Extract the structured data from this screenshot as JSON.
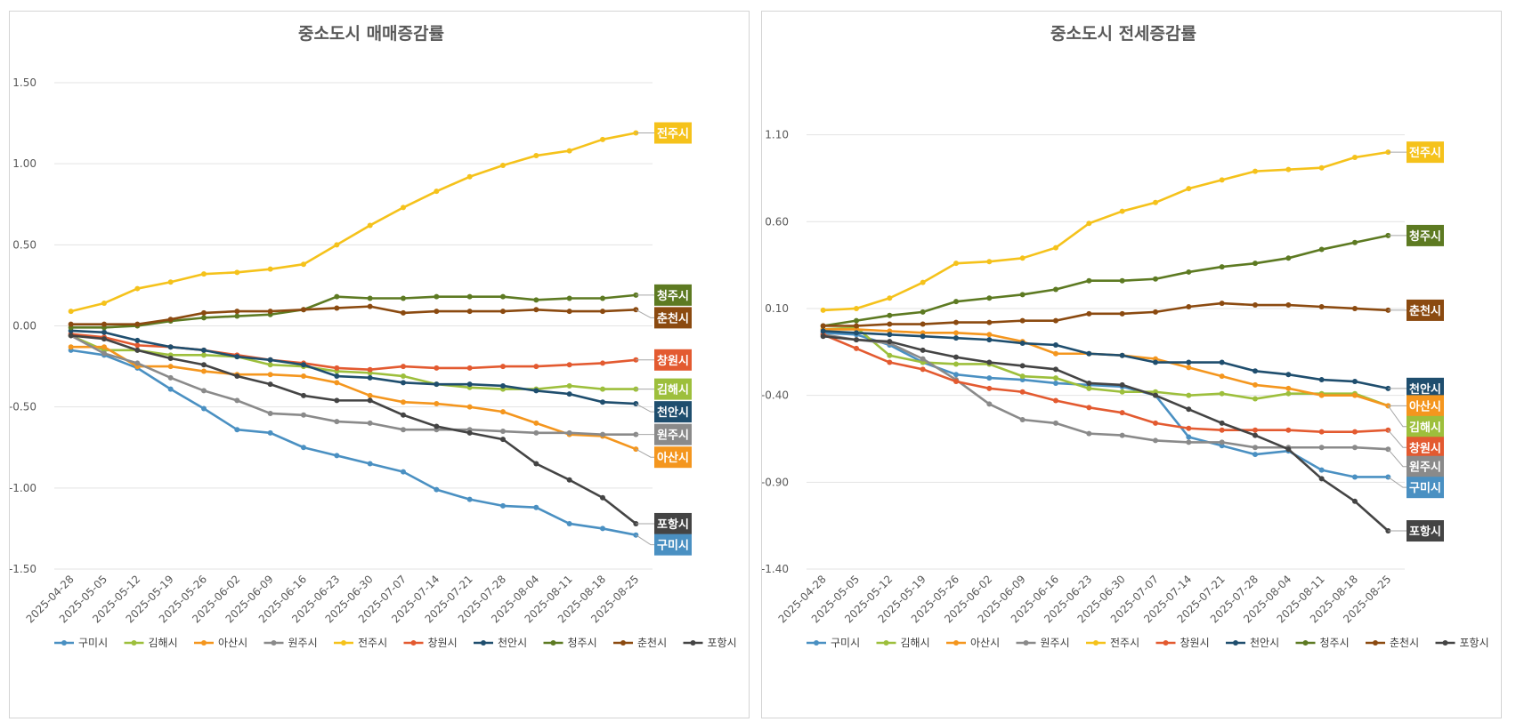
{
  "chart_data": [
    {
      "type": "line",
      "title": "중소도시 매매증감률",
      "x": [
        "2025-04-28",
        "2025-05-05",
        "2025-05-12",
        "2025-05-19",
        "2025-05-26",
        "2025-06-02",
        "2025-06-09",
        "2025-06-16",
        "2025-06-23",
        "2025-06-30",
        "2025-07-07",
        "2025-07-14",
        "2025-07-21",
        "2025-07-28",
        "2025-08-04",
        "2025-08-11",
        "2025-08-18",
        "2025-08-25"
      ],
      "ylim": [
        -1.5,
        1.5
      ],
      "yticks": [
        "1.50",
        "1.00",
        "0.50",
        "0.00",
        "-0.50",
        "-1.00",
        "-1.50"
      ],
      "grid": true,
      "legend": "bottom",
      "series": [
        {
          "name": "구미시",
          "color": "#4a90c2",
          "values": [
            -0.15,
            -0.18,
            -0.26,
            -0.39,
            -0.51,
            -0.64,
            -0.66,
            -0.75,
            -0.8,
            -0.85,
            -0.9,
            -1.01,
            -1.07,
            -1.11,
            -1.12,
            -1.22,
            -1.25,
            -1.29
          ]
        },
        {
          "name": "김해시",
          "color": "#9dbf3c",
          "values": [
            -0.06,
            -0.15,
            -0.15,
            -0.18,
            -0.18,
            -0.19,
            -0.24,
            -0.25,
            -0.28,
            -0.29,
            -0.31,
            -0.36,
            -0.38,
            -0.39,
            -0.39,
            -0.37,
            -0.39,
            -0.39
          ]
        },
        {
          "name": "아산시",
          "color": "#f4961e",
          "values": [
            -0.13,
            -0.13,
            -0.25,
            -0.25,
            -0.28,
            -0.3,
            -0.3,
            -0.31,
            -0.35,
            -0.43,
            -0.47,
            -0.48,
            -0.5,
            -0.53,
            -0.6,
            -0.67,
            -0.68,
            -0.76
          ]
        },
        {
          "name": "원주시",
          "color": "#8a8a8a",
          "values": [
            -0.06,
            -0.17,
            -0.23,
            -0.32,
            -0.4,
            -0.46,
            -0.54,
            -0.55,
            -0.59,
            -0.6,
            -0.64,
            -0.64,
            -0.64,
            -0.65,
            -0.66,
            -0.66,
            -0.67,
            -0.67
          ]
        },
        {
          "name": "전주시",
          "color": "#f5c21b",
          "values": [
            0.09,
            0.14,
            0.23,
            0.27,
            0.32,
            0.33,
            0.35,
            0.38,
            0.5,
            0.62,
            0.73,
            0.83,
            0.92,
            0.99,
            1.05,
            1.08,
            1.15,
            1.19
          ]
        },
        {
          "name": "창원시",
          "color": "#e35a30",
          "values": [
            -0.05,
            -0.07,
            -0.12,
            -0.13,
            -0.15,
            -0.18,
            -0.21,
            -0.23,
            -0.26,
            -0.27,
            -0.25,
            -0.26,
            -0.26,
            -0.25,
            -0.25,
            -0.24,
            -0.23,
            -0.21
          ]
        },
        {
          "name": "천안시",
          "color": "#1f4e6e",
          "values": [
            -0.03,
            -0.04,
            -0.09,
            -0.13,
            -0.15,
            -0.19,
            -0.21,
            -0.24,
            -0.31,
            -0.32,
            -0.35,
            -0.36,
            -0.36,
            -0.37,
            -0.4,
            -0.42,
            -0.47,
            -0.48
          ]
        },
        {
          "name": "청주시",
          "color": "#5d7a22",
          "values": [
            -0.01,
            -0.01,
            -0.0,
            0.03,
            0.05,
            0.06,
            0.07,
            0.1,
            0.18,
            0.17,
            0.17,
            0.18,
            0.18,
            0.18,
            0.16,
            0.17,
            0.17,
            0.19
          ]
        },
        {
          "name": "춘천시",
          "color": "#8b4a10",
          "values": [
            0.01,
            0.01,
            0.01,
            0.04,
            0.08,
            0.09,
            0.09,
            0.1,
            0.11,
            0.12,
            0.08,
            0.09,
            0.09,
            0.09,
            0.1,
            0.09,
            0.09,
            0.1
          ]
        },
        {
          "name": "포항시",
          "color": "#444444",
          "values": [
            -0.06,
            -0.08,
            -0.15,
            -0.2,
            -0.24,
            -0.31,
            -0.36,
            -0.43,
            -0.46,
            -0.46,
            -0.55,
            -0.62,
            -0.66,
            -0.7,
            -0.85,
            -0.95,
            -1.06,
            -1.22
          ]
        }
      ],
      "end_labels": [
        {
          "name": "전주시",
          "color": "#f5c21b",
          "label_y": 1.19
        },
        {
          "name": "청주시",
          "color": "#5d7a22",
          "label_y": 0.19
        },
        {
          "name": "춘천시",
          "color": "#8b4a10",
          "label_y": 0.05
        },
        {
          "name": "창원시",
          "color": "#e35a30",
          "label_y": -0.21
        },
        {
          "name": "김해시",
          "color": "#9dbf3c",
          "label_y": -0.39
        },
        {
          "name": "천안시",
          "color": "#1f4e6e",
          "label_y": -0.53
        },
        {
          "name": "원주시",
          "color": "#8a8a8a",
          "label_y": -0.67
        },
        {
          "name": "아산시",
          "color": "#f4961e",
          "label_y": -0.81
        },
        {
          "name": "포항시",
          "color": "#444444",
          "label_y": -1.22
        },
        {
          "name": "구미시",
          "color": "#4a90c2",
          "label_y": -1.35
        }
      ]
    },
    {
      "type": "line",
      "title": "중소도시 전세증감률",
      "x": [
        "2025-04-28",
        "2025-05-05",
        "2025-05-12",
        "2025-05-19",
        "2025-05-26",
        "2025-06-02",
        "2025-06-09",
        "2025-06-16",
        "2025-06-23",
        "2025-06-30",
        "2025-07-07",
        "2025-07-14",
        "2025-07-21",
        "2025-07-28",
        "2025-08-04",
        "2025-08-11",
        "2025-08-18",
        "2025-08-25"
      ],
      "ylim": [
        -1.4,
        1.4
      ],
      "yticks": [
        "1.10",
        "0.60",
        "0.10",
        "-0.40",
        "-0.90",
        "-1.40"
      ],
      "grid": true,
      "legend": "bottom",
      "series": [
        {
          "name": "구미시",
          "color": "#4a90c2",
          "values": [
            -0.04,
            -0.05,
            -0.11,
            -0.21,
            -0.28,
            -0.3,
            -0.31,
            -0.33,
            -0.34,
            -0.35,
            -0.4,
            -0.64,
            -0.69,
            -0.74,
            -0.72,
            -0.83,
            -0.87,
            -0.87
          ]
        },
        {
          "name": "김해시",
          "color": "#9dbf3c",
          "values": [
            -0.02,
            -0.01,
            -0.17,
            -0.21,
            -0.22,
            -0.22,
            -0.29,
            -0.3,
            -0.36,
            -0.38,
            -0.38,
            -0.4,
            -0.39,
            -0.42,
            -0.39,
            -0.39,
            -0.39,
            -0.46
          ]
        },
        {
          "name": "아산시",
          "color": "#f4961e",
          "values": [
            -0.02,
            -0.02,
            -0.03,
            -0.04,
            -0.04,
            -0.05,
            -0.09,
            -0.16,
            -0.16,
            -0.17,
            -0.19,
            -0.24,
            -0.29,
            -0.34,
            -0.36,
            -0.4,
            -0.4,
            -0.46
          ]
        },
        {
          "name": "원주시",
          "color": "#8a8a8a",
          "values": [
            -0.05,
            -0.08,
            -0.1,
            -0.19,
            -0.31,
            -0.45,
            -0.54,
            -0.56,
            -0.62,
            -0.63,
            -0.66,
            -0.67,
            -0.67,
            -0.7,
            -0.7,
            -0.7,
            -0.7,
            -0.71
          ]
        },
        {
          "name": "전주시",
          "color": "#f5c21b",
          "values": [
            0.09,
            0.1,
            0.16,
            0.25,
            0.36,
            0.37,
            0.39,
            0.45,
            0.59,
            0.66,
            0.71,
            0.79,
            0.84,
            0.89,
            0.9,
            0.91,
            0.97,
            1.0
          ]
        },
        {
          "name": "창원시",
          "color": "#e35a30",
          "values": [
            -0.05,
            -0.13,
            -0.21,
            -0.25,
            -0.32,
            -0.36,
            -0.38,
            -0.43,
            -0.47,
            -0.5,
            -0.56,
            -0.59,
            -0.6,
            -0.6,
            -0.6,
            -0.61,
            -0.61,
            -0.6
          ]
        },
        {
          "name": "천안시",
          "color": "#1f4e6e",
          "values": [
            -0.03,
            -0.04,
            -0.05,
            -0.06,
            -0.07,
            -0.08,
            -0.1,
            -0.11,
            -0.16,
            -0.17,
            -0.21,
            -0.21,
            -0.21,
            -0.26,
            -0.28,
            -0.31,
            -0.32,
            -0.36
          ]
        },
        {
          "name": "청주시",
          "color": "#5d7a22",
          "values": [
            0.0,
            0.03,
            0.06,
            0.08,
            0.14,
            0.16,
            0.18,
            0.21,
            0.26,
            0.26,
            0.27,
            0.31,
            0.34,
            0.36,
            0.39,
            0.44,
            0.48,
            0.52
          ]
        },
        {
          "name": "춘천시",
          "color": "#8b4a10",
          "values": [
            0.0,
            0.0,
            0.01,
            0.01,
            0.02,
            0.02,
            0.03,
            0.03,
            0.07,
            0.07,
            0.08,
            0.11,
            0.13,
            0.12,
            0.12,
            0.11,
            0.1,
            0.09
          ]
        },
        {
          "name": "포항시",
          "color": "#444444",
          "values": [
            -0.06,
            -0.08,
            -0.09,
            -0.14,
            -0.18,
            -0.21,
            -0.23,
            -0.25,
            -0.33,
            -0.34,
            -0.4,
            -0.48,
            -0.56,
            -0.63,
            -0.71,
            -0.88,
            -1.01,
            -1.18
          ]
        }
      ],
      "end_labels": [
        {
          "name": "전주시",
          "color": "#f5c21b",
          "label_y": 1.0
        },
        {
          "name": "청주시",
          "color": "#5d7a22",
          "label_y": 0.52
        },
        {
          "name": "춘천시",
          "color": "#8b4a10",
          "label_y": 0.09
        },
        {
          "name": "천안시",
          "color": "#1f4e6e",
          "label_y": -0.36
        },
        {
          "name": "아산시",
          "color": "#f4961e",
          "label_y": -0.46
        },
        {
          "name": "김해시",
          "color": "#9dbf3c",
          "label_y": -0.58
        },
        {
          "name": "창원시",
          "color": "#e35a30",
          "label_y": -0.7
        },
        {
          "name": "원주시",
          "color": "#8a8a8a",
          "label_y": -0.81
        },
        {
          "name": "구미시",
          "color": "#4a90c2",
          "label_y": -0.93
        },
        {
          "name": "포항시",
          "color": "#444444",
          "label_y": -1.18
        }
      ]
    }
  ]
}
